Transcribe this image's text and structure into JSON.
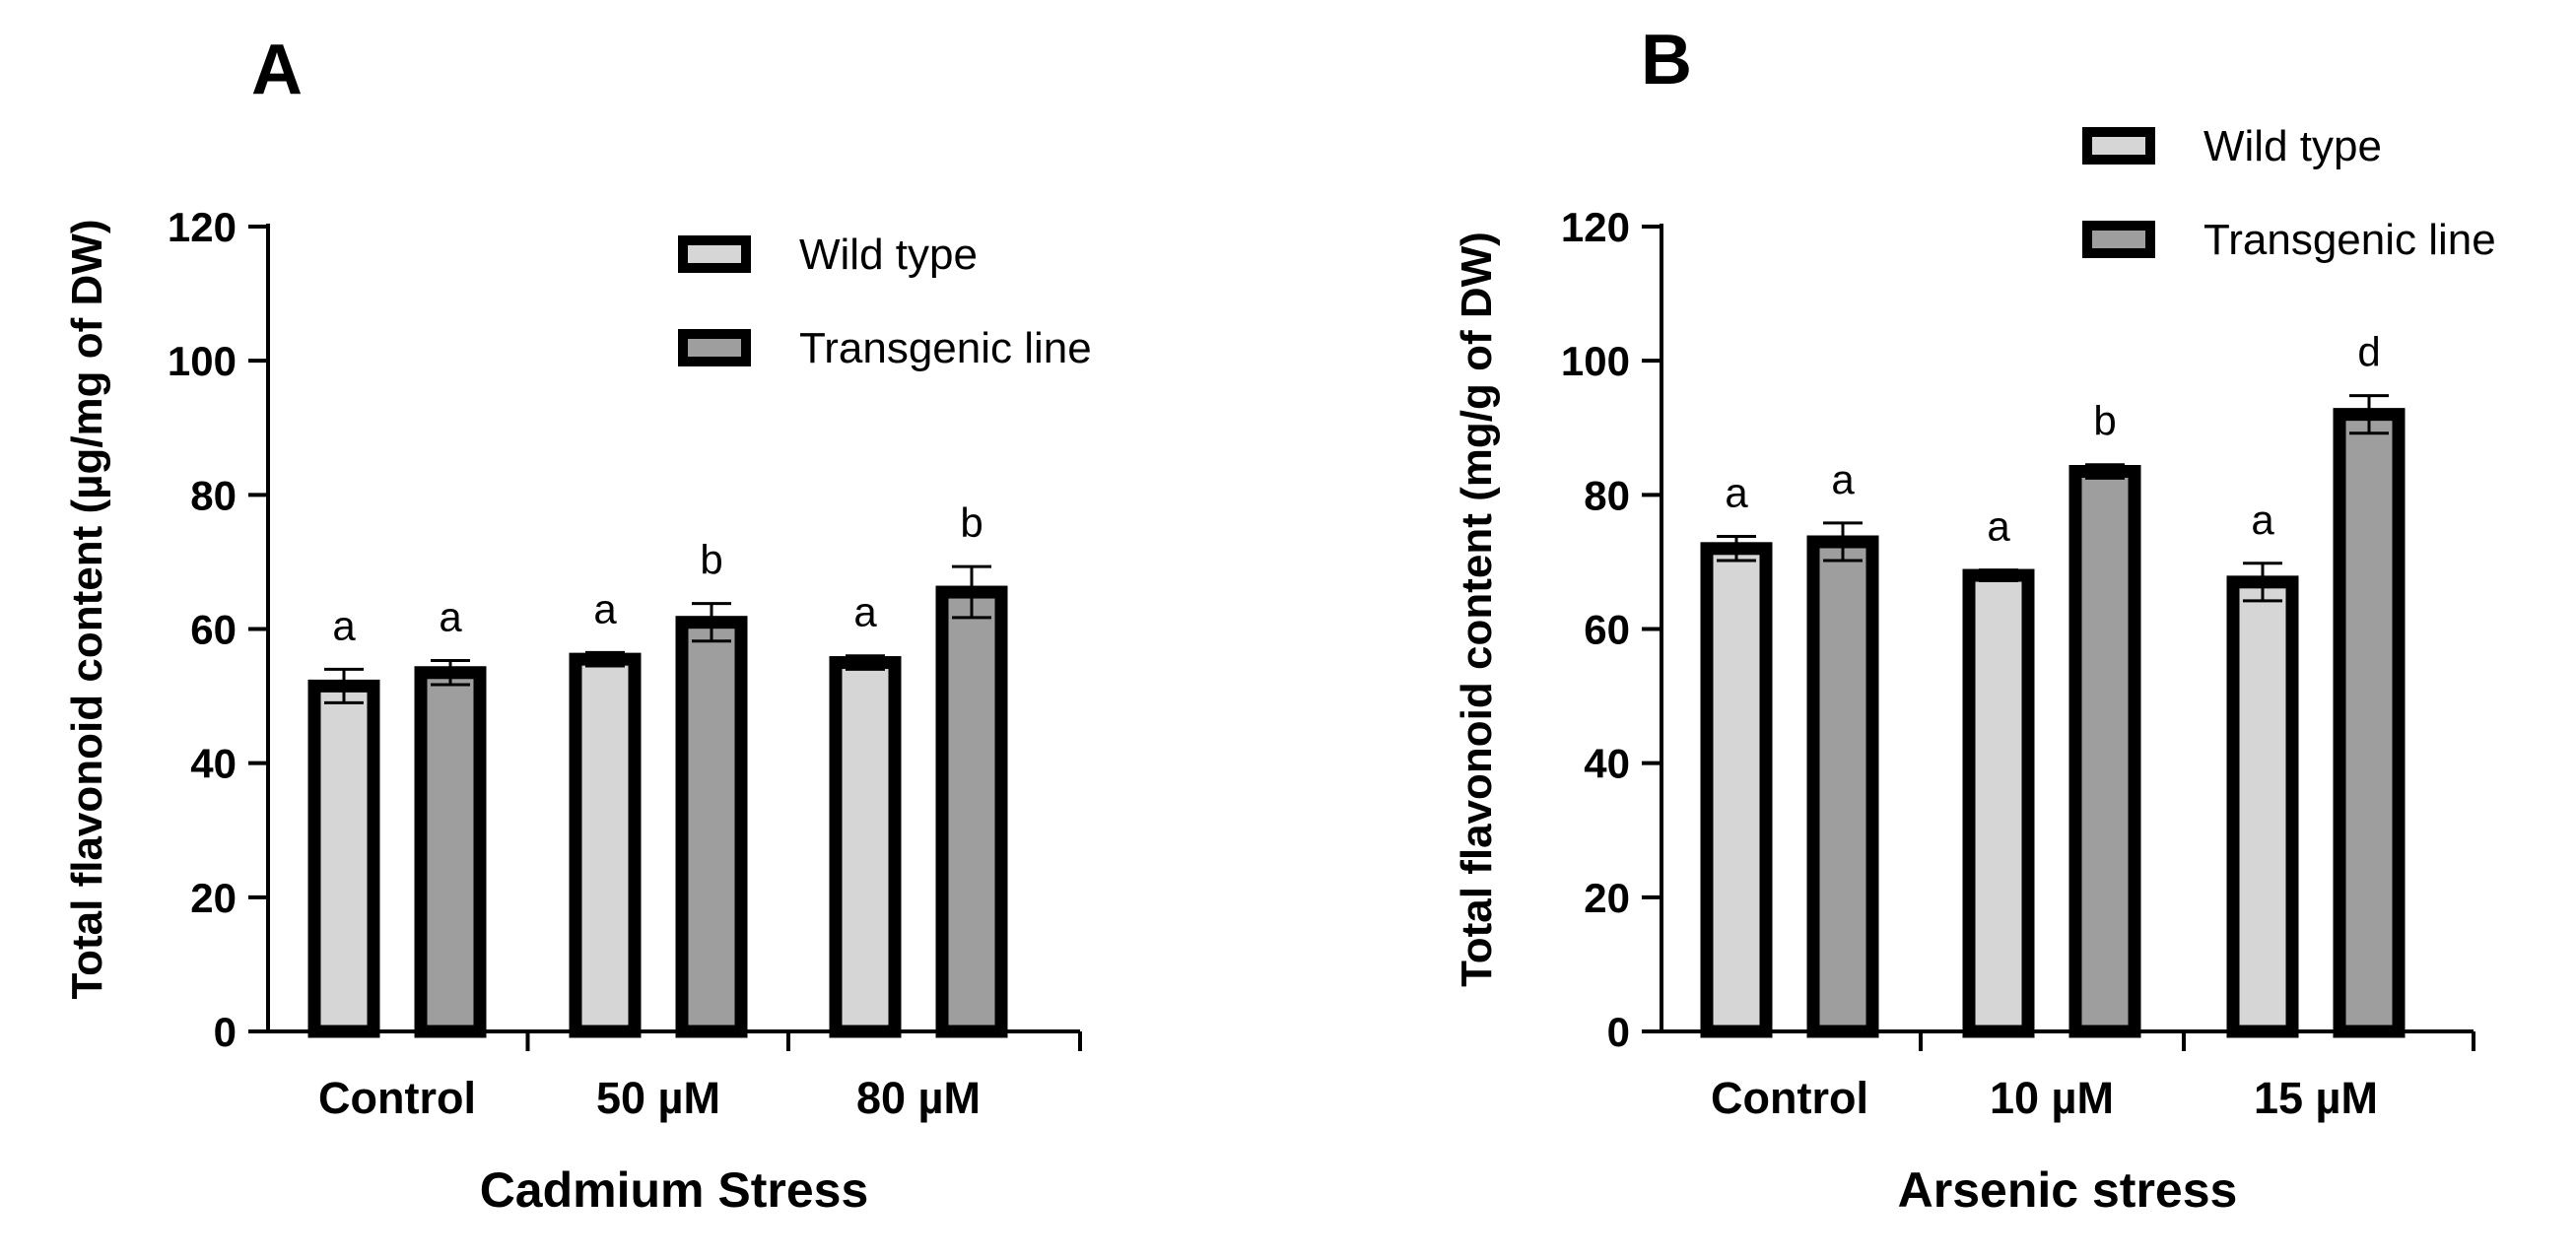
{
  "colors": {
    "wild_type": "#d6d6d6",
    "transgenic": "#9e9e9e",
    "outline": "#000000"
  },
  "chart_data": [
    {
      "panel_label": "A",
      "type": "bar",
      "xlabel": "Cadmium Stress",
      "ylabel": "Total flavonoid content (µg/mg of DW)",
      "ylim": [
        0,
        120
      ],
      "yticks": [
        "0",
        "20",
        "40",
        "60",
        "80",
        "100",
        "120"
      ],
      "categories": [
        "Control",
        "50 µM",
        "80 µM"
      ],
      "legend": [
        "Wild type",
        "Transgenic line"
      ],
      "legend_position": "top-right",
      "series": [
        {
          "name": "Wild type",
          "values": [
            51.5,
            55.5,
            55
          ],
          "errors": [
            2.5,
            1,
            1
          ],
          "letters": [
            "a",
            "a",
            "a"
          ]
        },
        {
          "name": "Transgenic line",
          "values": [
            53.5,
            61,
            65.5
          ],
          "errors": [
            1.8,
            2.8,
            3.8
          ],
          "letters": [
            "a",
            "b",
            "b"
          ]
        }
      ]
    },
    {
      "panel_label": "B",
      "type": "bar",
      "xlabel": "Arsenic stress",
      "ylabel": "Total flavonoid content (mg/g of DW)",
      "ylim": [
        0,
        120
      ],
      "yticks": [
        "0",
        "20",
        "40",
        "60",
        "80",
        "100",
        "120"
      ],
      "categories": [
        "Control",
        "10 µM",
        "15 µM"
      ],
      "legend": [
        "Wild type",
        "Transgenic line"
      ],
      "legend_position": "top-right",
      "series": [
        {
          "name": "Wild type",
          "values": [
            72,
            68,
            67
          ],
          "errors": [
            1.8,
            0.8,
            2.8
          ],
          "letters": [
            "a",
            "a",
            "a"
          ]
        },
        {
          "name": "Transgenic line",
          "values": [
            73,
            83.5,
            92
          ],
          "errors": [
            2.8,
            1,
            2.8
          ],
          "letters": [
            "a",
            "b",
            "d"
          ]
        }
      ]
    }
  ]
}
